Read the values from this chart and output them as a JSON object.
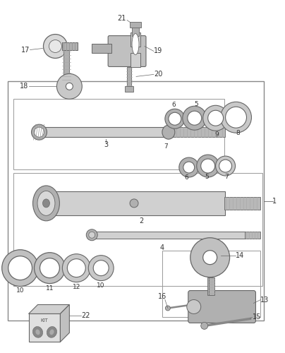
{
  "bg_color": "#ffffff",
  "line_color": "#666666",
  "part_gray_light": "#d0d0d0",
  "part_gray_mid": "#b0b0b0",
  "part_gray_dark": "#888888",
  "text_color": "#333333",
  "box_stroke": "#888888",
  "figsize": [
    4.04,
    5.0
  ],
  "dpi": 100
}
